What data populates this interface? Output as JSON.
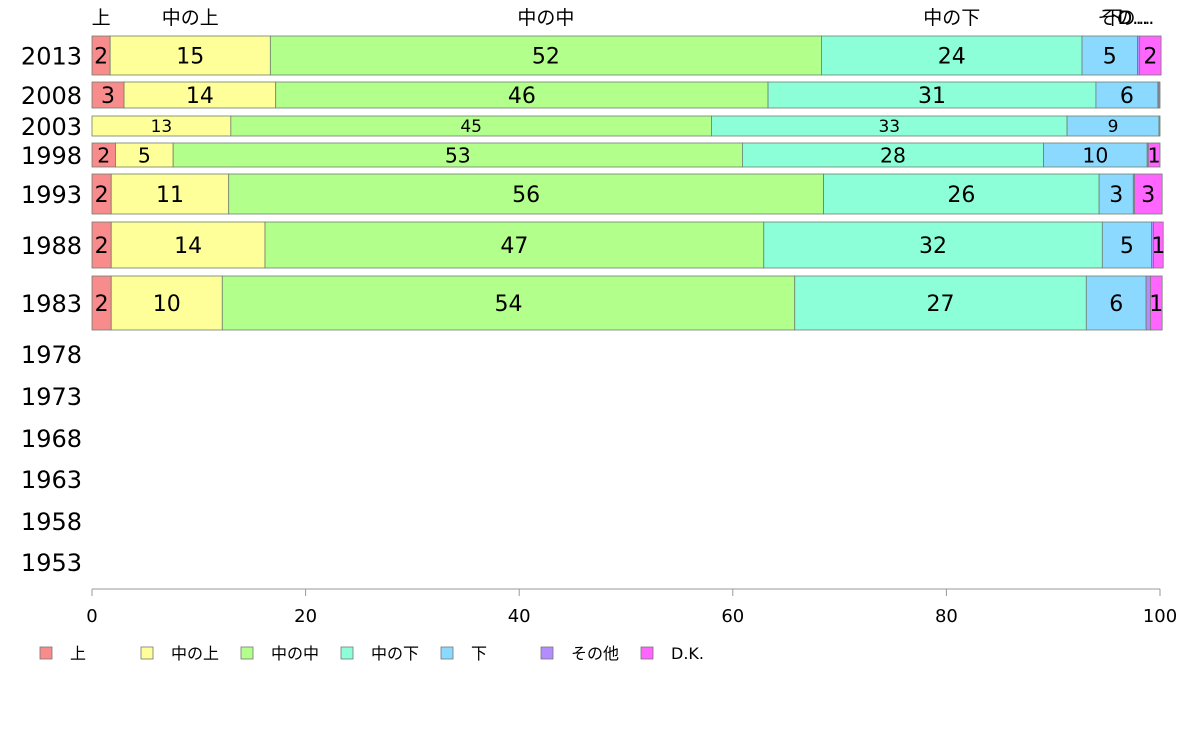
{
  "chart_data": {
    "type": "bar",
    "orientation": "horizontal",
    "stacked": true,
    "xlim": [
      0,
      100
    ],
    "x_ticks": [
      "0",
      "20",
      "40",
      "60",
      "80",
      "100"
    ],
    "top_labels": [
      "上",
      "中の上",
      "中の中",
      "中の下",
      "下",
      "その…",
      "D..."
    ],
    "categories": [
      "2013",
      "2008",
      "2003",
      "1998",
      "1993",
      "1988",
      "1983",
      "1978",
      "1973",
      "1968",
      "1963",
      "1958",
      "1953"
    ],
    "series": [
      {
        "name": "上",
        "color": "#f88c8c",
        "values": [
          1.7,
          3,
          0,
          2.2,
          1.8,
          1.8,
          1.8,
          null,
          null,
          null,
          null,
          null,
          null
        ],
        "labels": [
          "2",
          "3",
          "",
          "2",
          "2",
          "2",
          "2",
          "",
          "",
          "",
          "",
          "",
          ""
        ]
      },
      {
        "name": "中の上",
        "color": "#ffff99",
        "values": [
          15,
          14.2,
          13,
          5.4,
          11,
          14.4,
          10.4,
          null,
          null,
          null,
          null,
          null,
          null
        ],
        "labels": [
          "15",
          "14",
          "13",
          "5",
          "11",
          "14",
          "10",
          "",
          "",
          "",
          "",
          "",
          ""
        ]
      },
      {
        "name": "中の中",
        "color": "#b3ff8c",
        "values": [
          51.6,
          46.1,
          45,
          53.3,
          55.7,
          46.7,
          53.6,
          null,
          null,
          null,
          null,
          null,
          null
        ],
        "labels": [
          "52",
          "46",
          "45",
          "53",
          "56",
          "47",
          "54",
          "",
          "",
          "",
          "",
          "",
          ""
        ]
      },
      {
        "name": "中の下",
        "color": "#8cffd9",
        "values": [
          24.4,
          30.7,
          33.3,
          28.2,
          25.8,
          31.7,
          27.3,
          null,
          null,
          null,
          null,
          null,
          null
        ],
        "labels": [
          "24",
          "31",
          "33",
          "28",
          "26",
          "32",
          "27",
          "",
          "",
          "",
          "",
          "",
          ""
        ]
      },
      {
        "name": "下",
        "color": "#8cd9ff",
        "values": [
          5.2,
          5.8,
          8.6,
          9.7,
          3.2,
          4.6,
          5.6,
          null,
          null,
          null,
          null,
          null,
          null
        ],
        "labels": [
          "5",
          "6",
          "9",
          "10",
          "3",
          "5",
          "6",
          "",
          "",
          "",
          "",
          "",
          ""
        ]
      },
      {
        "name": "その他",
        "color": "#b38cff",
        "values": [
          0.2,
          0.1,
          0.1,
          0.1,
          0.1,
          0.2,
          0.4,
          null,
          null,
          null,
          null,
          null,
          null
        ],
        "labels": [
          "",
          "",
          "",
          "",
          "",
          "",
          "",
          "",
          "",
          "",
          "",
          "",
          ""
        ]
      },
      {
        "name": "D.K.",
        "color": "#ff66ff",
        "values": [
          2,
          0.1,
          0,
          1.1,
          2.6,
          0.9,
          1.1,
          null,
          null,
          null,
          null,
          null,
          null
        ],
        "labels": [
          "2",
          "",
          "",
          "1",
          "3",
          "1",
          "1",
          "",
          "",
          "",
          "",
          "",
          ""
        ]
      }
    ],
    "legend": [
      "上",
      "中の上",
      "中の中",
      "中の下",
      "下",
      "その他",
      "D.K."
    ],
    "legend_position": "bottom"
  }
}
